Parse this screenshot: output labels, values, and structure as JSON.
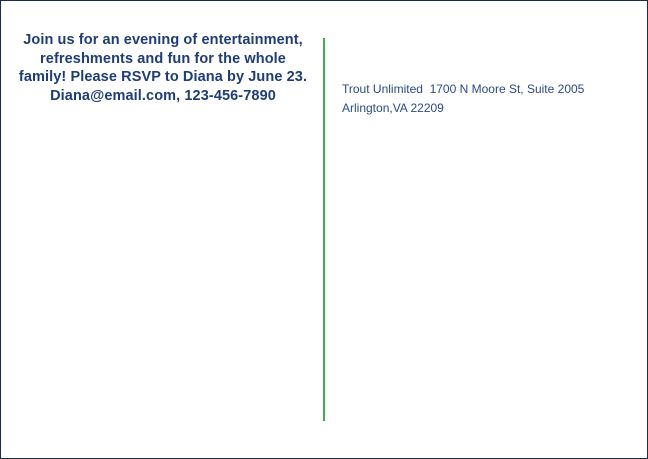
{
  "postcard": {
    "message": {
      "lines": [
        "Join us for an evening of entertainment,",
        "refreshments and fun for the whole",
        "family! Please RSVP to Diana by June 23.",
        "Diana@email.com, 123-456-7890"
      ]
    },
    "return_address": {
      "line1": "Trout Unlimited  1700 N Moore St, Suite 2005",
      "line2": "Arlington,VA 22209"
    },
    "colors": {
      "message_text": "#1e3c78",
      "address_text": "#2a4a86",
      "divider_green": "#3fae4a",
      "border_navy": "#1c2b4a",
      "background": "#ffffff"
    }
  }
}
